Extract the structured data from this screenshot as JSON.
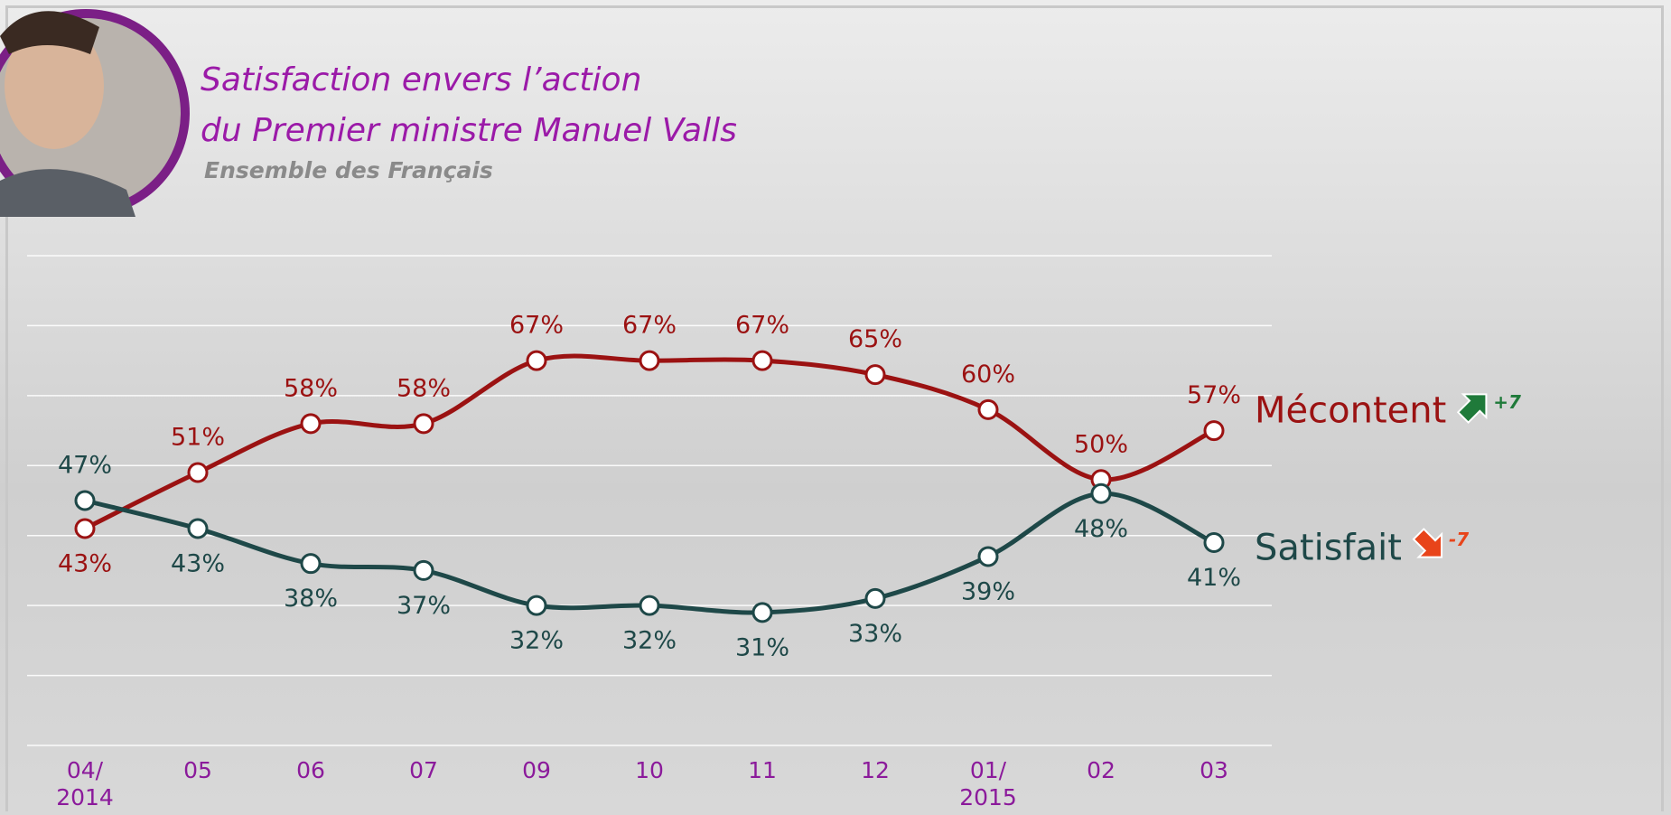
{
  "chart_data": {
    "type": "line",
    "title": [
      "Satisfaction envers l’action",
      "du Premier ministre Manuel Valls"
    ],
    "subtitle": "Ensemble des Français",
    "categories": [
      "04/\n2014",
      "05",
      "06",
      "07",
      "09",
      "10",
      "11",
      "12",
      "01/\n2015",
      "02",
      "03"
    ],
    "series": [
      {
        "name": "Mécontent",
        "color": "#9b1212",
        "change_label": "+7",
        "values": [
          43,
          51,
          58,
          58,
          67,
          67,
          67,
          65,
          60,
          50,
          57
        ],
        "value_labels": [
          "43%",
          "51%",
          "58%",
          "58%",
          "67%",
          "67%",
          "67%",
          "65%",
          "60%",
          "50%",
          "57%"
        ]
      },
      {
        "name": "Satisfait",
        "color": "#1e4848",
        "change_label": "-7",
        "values": [
          47,
          43,
          38,
          37,
          32,
          32,
          31,
          33,
          39,
          48,
          41
        ],
        "value_labels": [
          "47%",
          "43%",
          "38%",
          "37%",
          "32%",
          "32%",
          "31%",
          "33%",
          "39%",
          "48%",
          "41%"
        ]
      }
    ],
    "ylim": [
      12,
      82
    ],
    "yticks": [
      12,
      22,
      32,
      42,
      52,
      62,
      72,
      82
    ],
    "grid": true
  }
}
